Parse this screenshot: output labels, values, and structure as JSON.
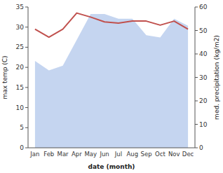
{
  "chart_data": {
    "type": "line",
    "xlabel": "date (month)",
    "ylabel": "max temp (C)",
    "y2label": "med. precipitation (kg/m2)",
    "categories": [
      "Jan",
      "Feb",
      "Mar",
      "Apr",
      "May",
      "Jun",
      "Jul",
      "Aug",
      "Sep",
      "Oct",
      "Nov",
      "Dec"
    ],
    "series": [
      {
        "type": "area",
        "axis": "y2",
        "color": "#c5d5f0",
        "values": [
          37,
          33,
          35,
          46,
          57,
          57,
          55,
          55,
          48,
          47,
          55,
          52
        ]
      },
      {
        "type": "line",
        "color": "#c0504d",
        "values": [
          29.5,
          27.5,
          29.5,
          33.5,
          32.5,
          31.3,
          31.0,
          31.5,
          31.5,
          30.5,
          31.5,
          29.5
        ]
      }
    ],
    "ylim": [
      0,
      35
    ],
    "yticks": [
      0,
      5,
      10,
      15,
      20,
      25,
      30,
      35
    ],
    "y2lim": [
      0,
      60
    ],
    "y2ticks": [
      0,
      10,
      20,
      30,
      40,
      50,
      60
    ],
    "grid": false
  }
}
